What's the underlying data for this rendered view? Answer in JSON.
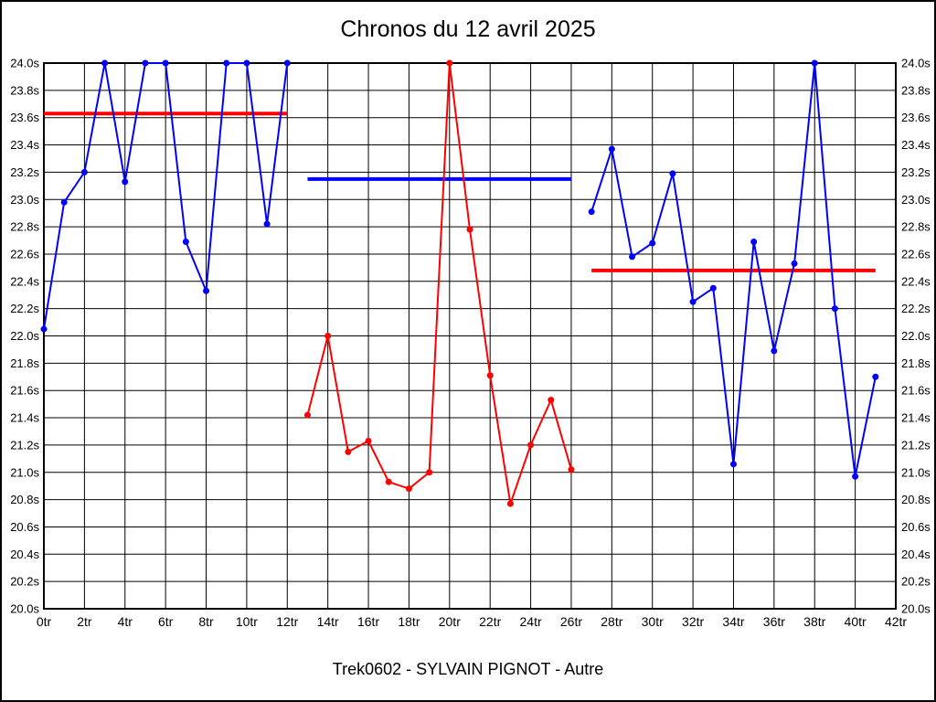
{
  "chart_data": {
    "type": "line",
    "title": "Chronos du 12 avril 2025",
    "footer": "Trek0602 - SYLVAIN PIGNOT - Autre",
    "xlabel": "",
    "ylabel": "",
    "xlim": [
      0,
      42
    ],
    "ylim": [
      20.0,
      24.0
    ],
    "x_tick_step": 2,
    "y_tick_step": 0.2,
    "x_tick_suffix": "tr",
    "y_tick_suffix": "s",
    "grid": true,
    "y_labels_both_sides": true,
    "legend": "none",
    "colors": {
      "series_blue": "#0000ff",
      "series_red": "#ff0000",
      "grid": "#000000",
      "background": "#ffffff",
      "text": "#000000"
    },
    "series": [
      {
        "name": "segment-1",
        "color": "#0000ff",
        "x": [
          0,
          1,
          2,
          3,
          4,
          5,
          6,
          7,
          8,
          9,
          10,
          11,
          12
        ],
        "values": [
          22.05,
          22.98,
          23.2,
          24.0,
          23.13,
          24.0,
          24.0,
          22.69,
          22.33,
          24.0,
          24.0,
          22.82,
          24.0
        ]
      },
      {
        "name": "segment-2",
        "color": "#ff0000",
        "x": [
          13,
          14,
          15,
          16,
          17,
          18,
          19,
          20,
          21,
          22,
          23,
          24,
          25,
          26
        ],
        "values": [
          21.42,
          22.0,
          21.15,
          21.23,
          20.93,
          20.88,
          21.0,
          24.0,
          22.78,
          21.71,
          20.77,
          21.2,
          21.53,
          21.02
        ]
      },
      {
        "name": "segment-3",
        "color": "#0000ff",
        "x": [
          27,
          28,
          29,
          30,
          31,
          32,
          33,
          34,
          35,
          36,
          37,
          38,
          39,
          40,
          41
        ],
        "values": [
          22.91,
          23.37,
          22.58,
          22.68,
          23.19,
          22.25,
          22.35,
          21.06,
          22.69,
          21.89,
          22.53,
          24.0,
          22.2,
          20.97,
          21.7
        ]
      }
    ],
    "reference_lines": [
      {
        "name": "ref-segment-1",
        "color": "#ff0000",
        "y": 23.63,
        "x_start": 0,
        "x_end": 12
      },
      {
        "name": "ref-segment-2",
        "color": "#0000ff",
        "y": 23.15,
        "x_start": 13,
        "x_end": 26
      },
      {
        "name": "ref-segment-3",
        "color": "#ff0000",
        "y": 22.48,
        "x_start": 27,
        "x_end": 41
      }
    ]
  }
}
